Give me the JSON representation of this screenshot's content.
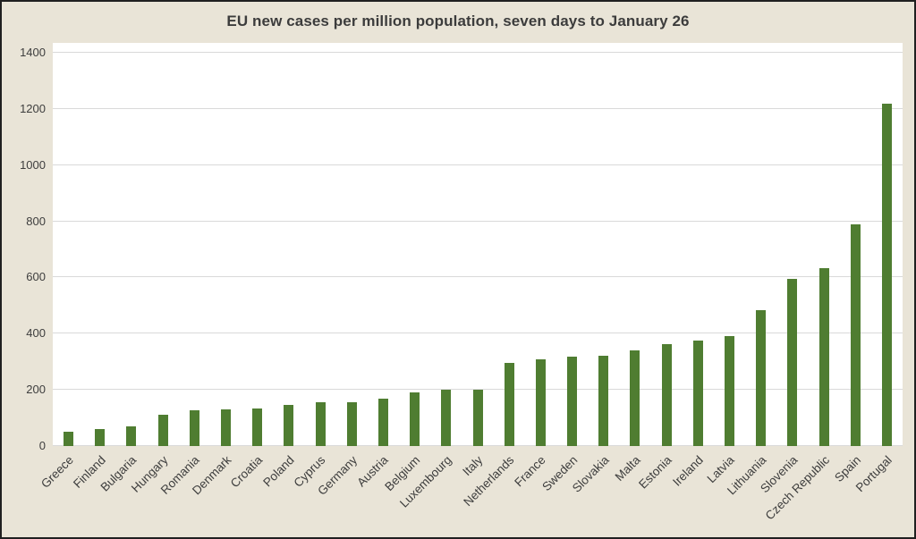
{
  "colors": {
    "background": "#e9e4d7",
    "plot_background": "#ffffff",
    "bar": "#4f7d31",
    "gridline": "#d9d9d9",
    "text": "#3d3d3d"
  },
  "chart_data": {
    "type": "bar",
    "title": "EU new cases per million population, seven days to January 26",
    "categories": [
      "Greece",
      "Finland",
      "Bulgaria",
      "Hungary",
      "Romania",
      "Denmark",
      "Croatia",
      "Poland",
      "Cyprus",
      "Germany",
      "Austria",
      "Belgium",
      "Luxembourg",
      "Italy",
      "Netherlands",
      "France",
      "Sweden",
      "Slovakia",
      "Malta",
      "Estonia",
      "Ireland",
      "Latvia",
      "Lithuania",
      "Slovenia",
      "Czech Republic",
      "Spain",
      "Portugal"
    ],
    "values": [
      50,
      62,
      70,
      110,
      128,
      130,
      135,
      147,
      155,
      157,
      168,
      190,
      200,
      201,
      295,
      308,
      318,
      323,
      340,
      362,
      375,
      393,
      483,
      595,
      632,
      790,
      1218
    ],
    "xlabel": "",
    "ylabel": "",
    "ylim": [
      0,
      1400
    ],
    "ytick_step": 200,
    "ytick_labels": [
      "0",
      "200",
      "400",
      "600",
      "800",
      "1000",
      "1200",
      "1400"
    ],
    "grid": "horizontal",
    "legend_position": "none",
    "bar_color": "#4f7d31"
  }
}
